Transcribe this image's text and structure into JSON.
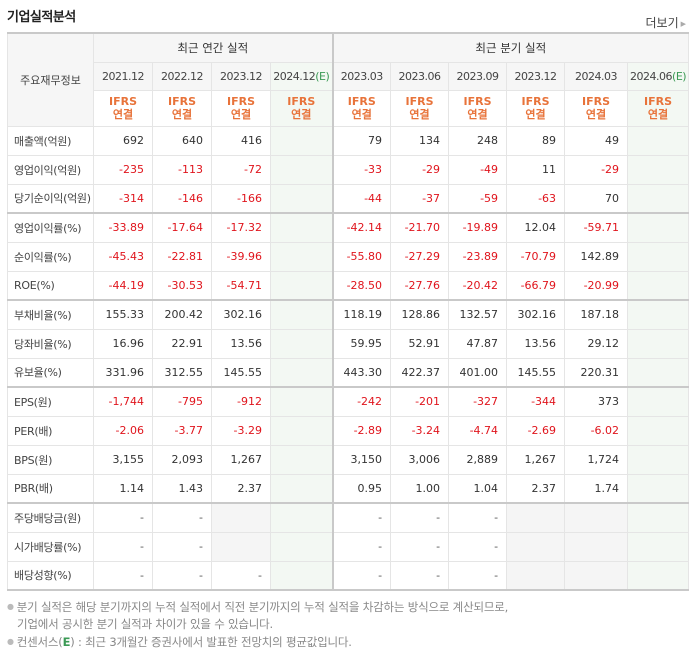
{
  "header": {
    "title": "기업실적분석",
    "more_label": "더보기",
    "more_icon": "triangle-right-icon"
  },
  "table": {
    "label_header": "주요재무정보",
    "groups": {
      "annual": "최근 연간 실적",
      "quarterly": "최근 분기 실적"
    },
    "periods": [
      {
        "label": "2021.12",
        "estimate": false
      },
      {
        "label": "2022.12",
        "estimate": false
      },
      {
        "label": "2023.12",
        "estimate": false
      },
      {
        "label": "2024.12",
        "estimate": true
      },
      {
        "label": "2023.03",
        "estimate": false
      },
      {
        "label": "2023.06",
        "estimate": false
      },
      {
        "label": "2023.09",
        "estimate": false
      },
      {
        "label": "2023.12",
        "estimate": false
      },
      {
        "label": "2024.03",
        "estimate": false
      },
      {
        "label": "2024.06",
        "estimate": true
      }
    ],
    "estimate_mark": "(E)",
    "ifrs_line1": "IFRS",
    "ifrs_line2": "연결",
    "rows": [
      {
        "label": "매출액(억원)",
        "values": [
          "692",
          "640",
          "416",
          "",
          "79",
          "134",
          "248",
          "89",
          "49",
          ""
        ]
      },
      {
        "label": "영업이익(억원)",
        "values": [
          "-235",
          "-113",
          "-72",
          "",
          "-33",
          "-29",
          "-49",
          "11",
          "-29",
          ""
        ]
      },
      {
        "label": "당기순이익(억원)",
        "values": [
          "-314",
          "-146",
          "-166",
          "",
          "-44",
          "-37",
          "-59",
          "-63",
          "70",
          ""
        ]
      },
      {
        "label": "영업이익률(%)",
        "values": [
          "-33.89",
          "-17.64",
          "-17.32",
          "",
          "-42.14",
          "-21.70",
          "-19.89",
          "12.04",
          "-59.71",
          ""
        ]
      },
      {
        "label": "순이익률(%)",
        "values": [
          "-45.43",
          "-22.81",
          "-39.96",
          "",
          "-55.80",
          "-27.29",
          "-23.89",
          "-70.79",
          "142.89",
          ""
        ]
      },
      {
        "label": "ROE(%)",
        "values": [
          "-44.19",
          "-30.53",
          "-54.71",
          "",
          "-28.50",
          "-27.76",
          "-20.42",
          "-66.79",
          "-20.99",
          ""
        ]
      },
      {
        "label": "부채비율(%)",
        "values": [
          "155.33",
          "200.42",
          "302.16",
          "",
          "118.19",
          "128.86",
          "132.57",
          "302.16",
          "187.18",
          ""
        ]
      },
      {
        "label": "당좌비율(%)",
        "values": [
          "16.96",
          "22.91",
          "13.56",
          "",
          "59.95",
          "52.91",
          "47.87",
          "13.56",
          "29.12",
          ""
        ]
      },
      {
        "label": "유보율(%)",
        "values": [
          "331.96",
          "312.55",
          "145.55",
          "",
          "443.30",
          "422.37",
          "401.00",
          "145.55",
          "220.31",
          ""
        ]
      },
      {
        "label": "EPS(원)",
        "values": [
          "-1,744",
          "-795",
          "-912",
          "",
          "-242",
          "-201",
          "-327",
          "-344",
          "373",
          ""
        ]
      },
      {
        "label": "PER(배)",
        "values": [
          "-2.06",
          "-3.77",
          "-3.29",
          "",
          "-2.89",
          "-3.24",
          "-4.74",
          "-2.69",
          "-6.02",
          ""
        ]
      },
      {
        "label": "BPS(원)",
        "values": [
          "3,155",
          "2,093",
          "1,267",
          "",
          "3,150",
          "3,006",
          "2,889",
          "1,267",
          "1,724",
          ""
        ]
      },
      {
        "label": "PBR(배)",
        "values": [
          "1.14",
          "1.43",
          "2.37",
          "",
          "0.95",
          "1.00",
          "1.04",
          "2.37",
          "1.74",
          ""
        ]
      },
      {
        "label": "주당배당금(원)",
        "values": [
          "-",
          "-",
          "",
          "",
          "-",
          "-",
          "-",
          "",
          "",
          ""
        ]
      },
      {
        "label": "시가배당률(%)",
        "values": [
          "-",
          "-",
          "",
          "",
          "-",
          "-",
          "-",
          "",
          "",
          ""
        ]
      },
      {
        "label": "배당성향(%)",
        "values": [
          "-",
          "-",
          "-",
          "",
          "-",
          "-",
          "-",
          "",
          "",
          ""
        ]
      }
    ]
  },
  "notes": {
    "line1": "분기 실적은 해당 분기까지의 누적 실적에서 직전 분기까지의 누적 실적을 차감하는 방식으로 계산되므로,",
    "line2": "기업에서 공시한 분기 실적과 차이가 있을 수 있습니다.",
    "line3_prefix": "컨센서스(",
    "line3_e": "E",
    "line3_suffix": ") : 최근 3개월간 증권사에서 발표한 전망치의 평균값입니다."
  },
  "colors": {
    "negative": "#e0141c",
    "ifrs": "#e8733a",
    "estimate_bg": "#f3f8f3",
    "estimate_mark": "#3b9a55",
    "header_bg": "#f6f6f6"
  }
}
